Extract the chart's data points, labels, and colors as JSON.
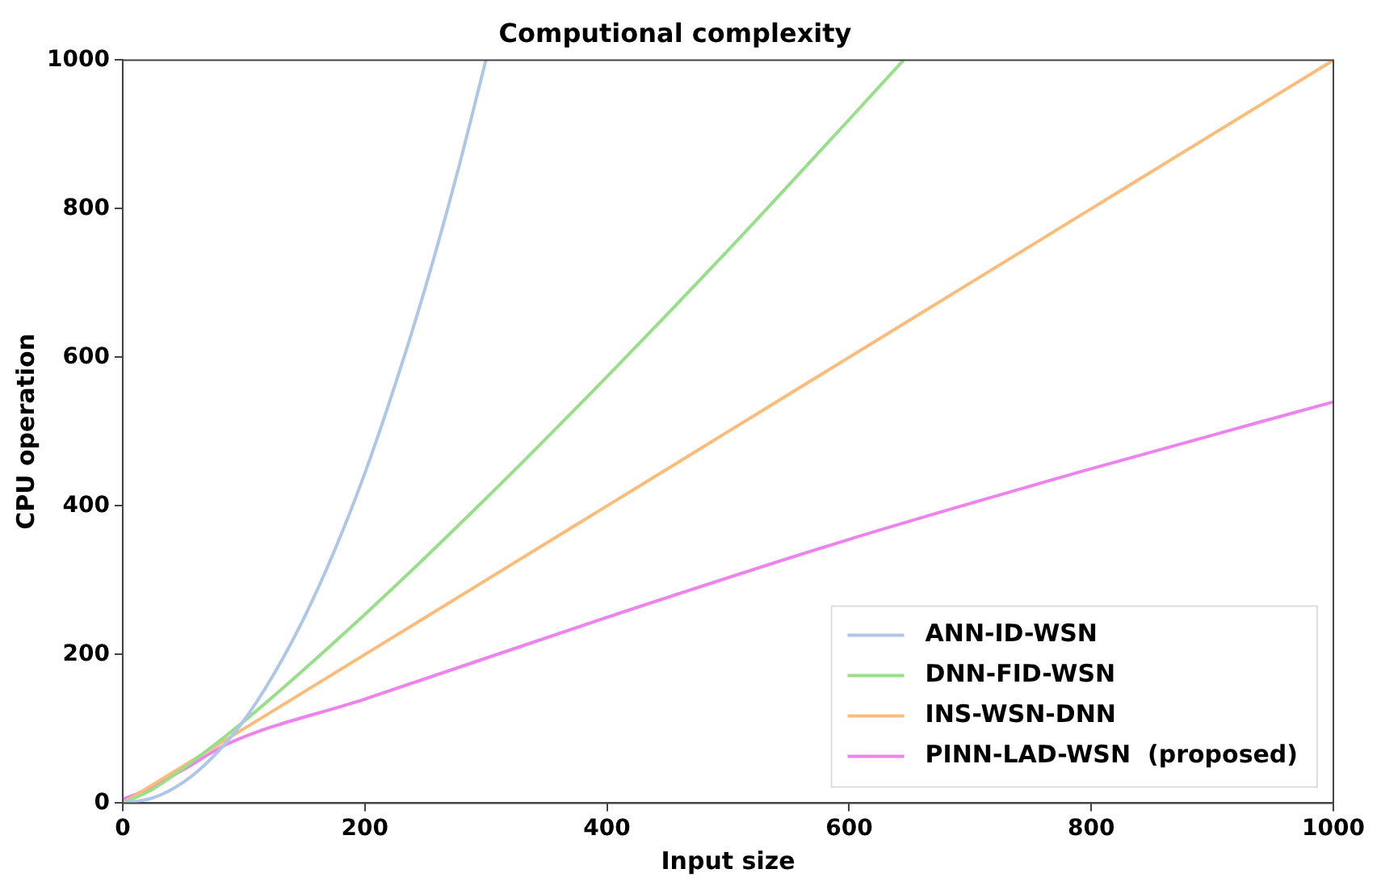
{
  "chart_data": {
    "type": "line",
    "title": "Computional complexity",
    "xlabel": "Input size",
    "ylabel": "CPU operation",
    "xlim": [
      0,
      1000
    ],
    "ylim": [
      0,
      1000
    ],
    "xticks": [
      0,
      200,
      400,
      600,
      800,
      1000
    ],
    "yticks": [
      0,
      200,
      400,
      600,
      800,
      1000
    ],
    "grid": false,
    "legend": "bottom right",
    "series": [
      {
        "name": "ANN-ID-WSN",
        "color": "#aec7e8",
        "x": [
          0,
          25,
          50,
          75,
          100,
          125,
          150,
          175,
          200,
          225,
          250,
          275,
          300
        ],
        "values": [
          0,
          7,
          28,
          63,
          111,
          174,
          250,
          340,
          444,
          563,
          694,
          840,
          1000
        ]
      },
      {
        "name": "DNN-FID-WSN",
        "color": "#98df8a",
        "x": [
          0,
          25,
          50,
          100,
          200,
          300,
          400,
          500,
          600,
          645
        ],
        "values": [
          0,
          19,
          47,
          110,
          254,
          410,
          574,
          744,
          920,
          1000
        ]
      },
      {
        "name": "INS-WSN-DNN",
        "color": "#ffbb78",
        "x": [
          0,
          100,
          200,
          300,
          400,
          500,
          600,
          700,
          800,
          900,
          1000
        ],
        "values": [
          0,
          100,
          200,
          300,
          400,
          500,
          600,
          700,
          800,
          900,
          1000
        ]
      },
      {
        "name": "PINN-LAD-WSN  (proposed)",
        "color": "#ee82ee",
        "x": [
          0,
          20,
          50,
          87,
          200,
          400,
          600,
          800,
          1000
        ],
        "values": [
          5,
          18,
          45,
          80,
          140,
          250,
          355,
          450,
          540
        ]
      }
    ]
  }
}
